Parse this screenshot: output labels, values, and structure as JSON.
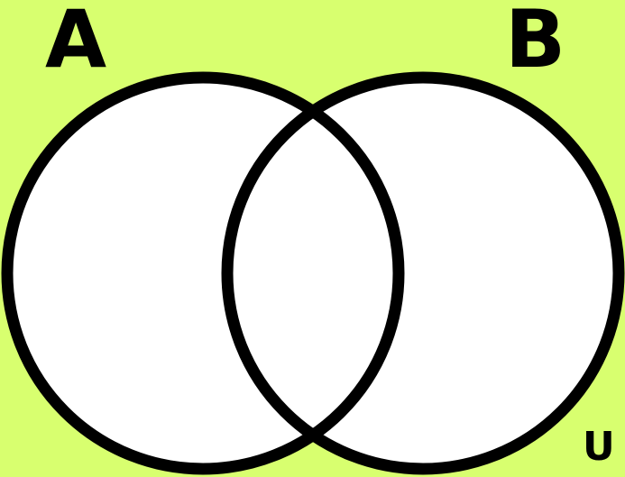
{
  "diagram": {
    "set_a_label": "A",
    "set_b_label": "B",
    "universe_label": "U"
  },
  "colors": {
    "background": "#d8ff6f",
    "circle_fill": "#ffffff",
    "outline": "#000000"
  }
}
